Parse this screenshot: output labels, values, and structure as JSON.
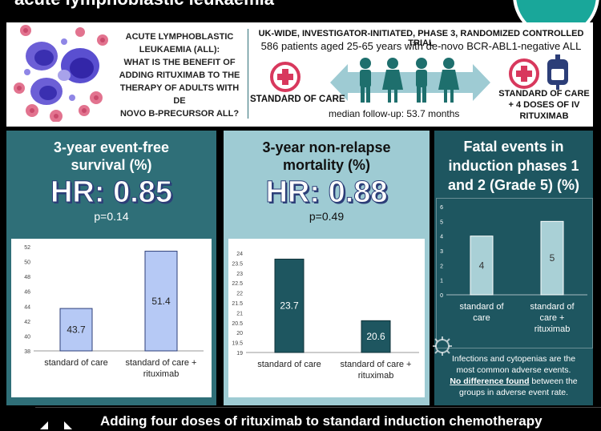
{
  "header": {
    "title": "acute lymphoblastic leukaemia"
  },
  "intro": {
    "question_lines": [
      "ACUTE LYMPHOBLASTIC",
      "LEUKAEMIA (ALL):",
      "WHAT IS THE BENEFIT OF",
      "ADDING RITUXIMAB TO THE",
      "THERAPY OF ADULTS WITH DE",
      "NOVO B-PRECURSOR ALL?"
    ],
    "trial_type": "UK-WIDE, INVESTIGATOR-INITIATED, PHASE 3, RANDOMIZED CONTROLLED TRIAL",
    "patients": "586 patients aged 25-65 years with de-novo BCR-ABL1-negative ALL",
    "arm_left": "STANDARD OF CARE",
    "arm_right_lines": [
      "STANDARD OF CARE",
      "+ 4 DOSES OF IV",
      "RITUXIMAB"
    ],
    "followup": "median follow-up: 53.7 months"
  },
  "panel1": {
    "title_lines": [
      "3-year event-free",
      "survival (%)"
    ],
    "hr": "HR: 0.85",
    "p": "p=0.14"
  },
  "panel2": {
    "title_lines": [
      "3-year non-relapse",
      "mortality (%)"
    ],
    "hr": "HR: 0.88",
    "p": "p=0.49"
  },
  "panel3": {
    "title_lines": [
      "Fatal events in",
      "induction phases 1",
      "and 2 (Grade 5) (%)"
    ]
  },
  "footnote": {
    "line1": "Infections and cytopenias are the",
    "line2": "most common adverse events.",
    "emph": "No difference found",
    "line3_rest": " between the",
    "line4": "groups in adverse event rate."
  },
  "conclusion": "Adding four doses of rituximab to standard induction chemotherapy",
  "colors": {
    "teal_dark": "#2f6f78",
    "teal_light": "#9ecbd3",
    "teal_deep": "#1e5660",
    "bar_light_blue": "#b6c9f5",
    "bar_dark_teal": "#1e5660",
    "bar_pale_teal": "#a9d0d6",
    "plus_pink": "#d8385d"
  },
  "chart_data": [
    {
      "type": "bar",
      "categories": [
        "standard of care",
        "standard of care + rituximab"
      ],
      "values": [
        43.7,
        51.4
      ],
      "ylim": [
        38,
        52
      ],
      "yticks": [
        38,
        40,
        42,
        44,
        46,
        48,
        50,
        52
      ]
    },
    {
      "type": "bar",
      "categories": [
        "standard of care",
        "standard of care + rituximab"
      ],
      "values": [
        23.7,
        20.6
      ],
      "ylim": [
        19,
        24
      ],
      "yticks": [
        19,
        19.5,
        20,
        20.5,
        21,
        21.5,
        22,
        22.5,
        23,
        23.5,
        24
      ]
    },
    {
      "type": "bar",
      "categories": [
        "standard of care",
        "standard of care + rituximab"
      ],
      "values": [
        4,
        5
      ],
      "ylim": [
        0,
        6
      ],
      "yticks": [
        0,
        1,
        2,
        3,
        4,
        5,
        6
      ]
    }
  ]
}
